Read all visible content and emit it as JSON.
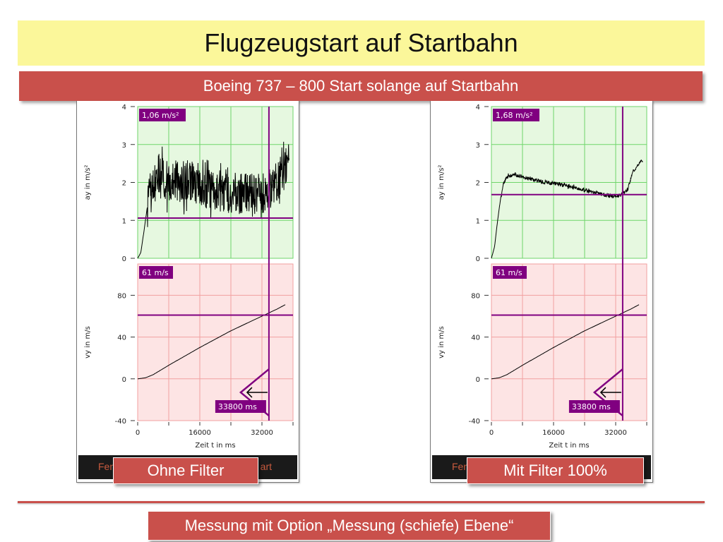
{
  "title": "Flugzeugstart auf Startbahn",
  "subtitle": "Boeing 737 – 800 Start solange auf Startbahn",
  "footer": "Messung mit Option „Messung (schiefe) Ebene“",
  "colors": {
    "accent": "#c9504b",
    "title_bg": "#fbf79a",
    "acc_bg": "#e6f8e0",
    "acc_grid": "#6fd56a",
    "vel_bg": "#fde4e4",
    "vel_grid": "#f1a0a0",
    "marker": "#800080"
  },
  "chart_data": [
    {
      "type": "line",
      "filter_label": "Ohne Filter",
      "bottom_left_text": "Fen",
      "bottom_right_text": "art",
      "xlabel": "Zeit t in ms",
      "xlim": [
        0,
        40000
      ],
      "xticks": [
        0,
        16000,
        32000
      ],
      "cursor_label": "33800 ms",
      "cursor_t": 33800,
      "acceleration": {
        "ylabel": "ay in m/s²",
        "ylim": [
          0,
          4
        ],
        "yticks": [
          0,
          1,
          2,
          3,
          4
        ],
        "marker_value": 1.06,
        "marker_label": "1,06 m/s²",
        "noise": 0.55,
        "x": [
          0,
          800,
          1600,
          2400,
          3200,
          4000,
          6000,
          10000,
          14000,
          18000,
          22000,
          26000,
          30000,
          33000,
          35000,
          37000,
          39000
        ],
        "y": [
          0,
          0.15,
          0.7,
          1.3,
          1.7,
          1.9,
          2.1,
          2.0,
          2.05,
          1.85,
          1.75,
          1.7,
          1.7,
          1.75,
          1.9,
          2.2,
          2.5
        ]
      },
      "velocity": {
        "ylabel": "vy in m/s",
        "ylim": [
          -40,
          110
        ],
        "yticks": [
          -40,
          0,
          40,
          80
        ],
        "marker_value": 61,
        "marker_label": "61 m/s",
        "x": [
          0,
          2000,
          4000,
          8000,
          16000,
          24000,
          32000,
          36000,
          38000
        ],
        "y": [
          0,
          1,
          4,
          13,
          30,
          46,
          60,
          67,
          71
        ]
      }
    },
    {
      "type": "line",
      "filter_label": "Mit Filter 100%",
      "bottom_left_text": "Fen",
      "bottom_right_text": "",
      "xlabel": "Zeit t in ms",
      "xlim": [
        0,
        40000
      ],
      "xticks": [
        0,
        16000,
        32000
      ],
      "cursor_label": "33800 ms",
      "cursor_t": 33800,
      "acceleration": {
        "ylabel": "ay in m/s²",
        "ylim": [
          0,
          4
        ],
        "yticks": [
          0,
          1,
          2,
          3,
          4
        ],
        "marker_value": 1.68,
        "marker_label": "1,68 m/s²",
        "noise": 0.05,
        "x": [
          0,
          800,
          1600,
          2400,
          3200,
          4000,
          6000,
          10000,
          14000,
          18000,
          22000,
          26000,
          30000,
          33000,
          35000,
          36500,
          38000,
          39000
        ],
        "y": [
          0,
          0.3,
          1.0,
          1.6,
          2.0,
          2.15,
          2.2,
          2.1,
          2.0,
          1.95,
          1.85,
          1.75,
          1.65,
          1.65,
          1.8,
          2.3,
          2.5,
          2.6
        ]
      },
      "velocity": {
        "ylabel": "vy in m/s",
        "ylim": [
          -40,
          110
        ],
        "yticks": [
          -40,
          0,
          40,
          80
        ],
        "marker_value": 61,
        "marker_label": "61 m/s",
        "x": [
          0,
          2000,
          4000,
          8000,
          16000,
          24000,
          32000,
          36000,
          38000
        ],
        "y": [
          0,
          1,
          4,
          13,
          30,
          46,
          60,
          67,
          71
        ]
      }
    }
  ]
}
